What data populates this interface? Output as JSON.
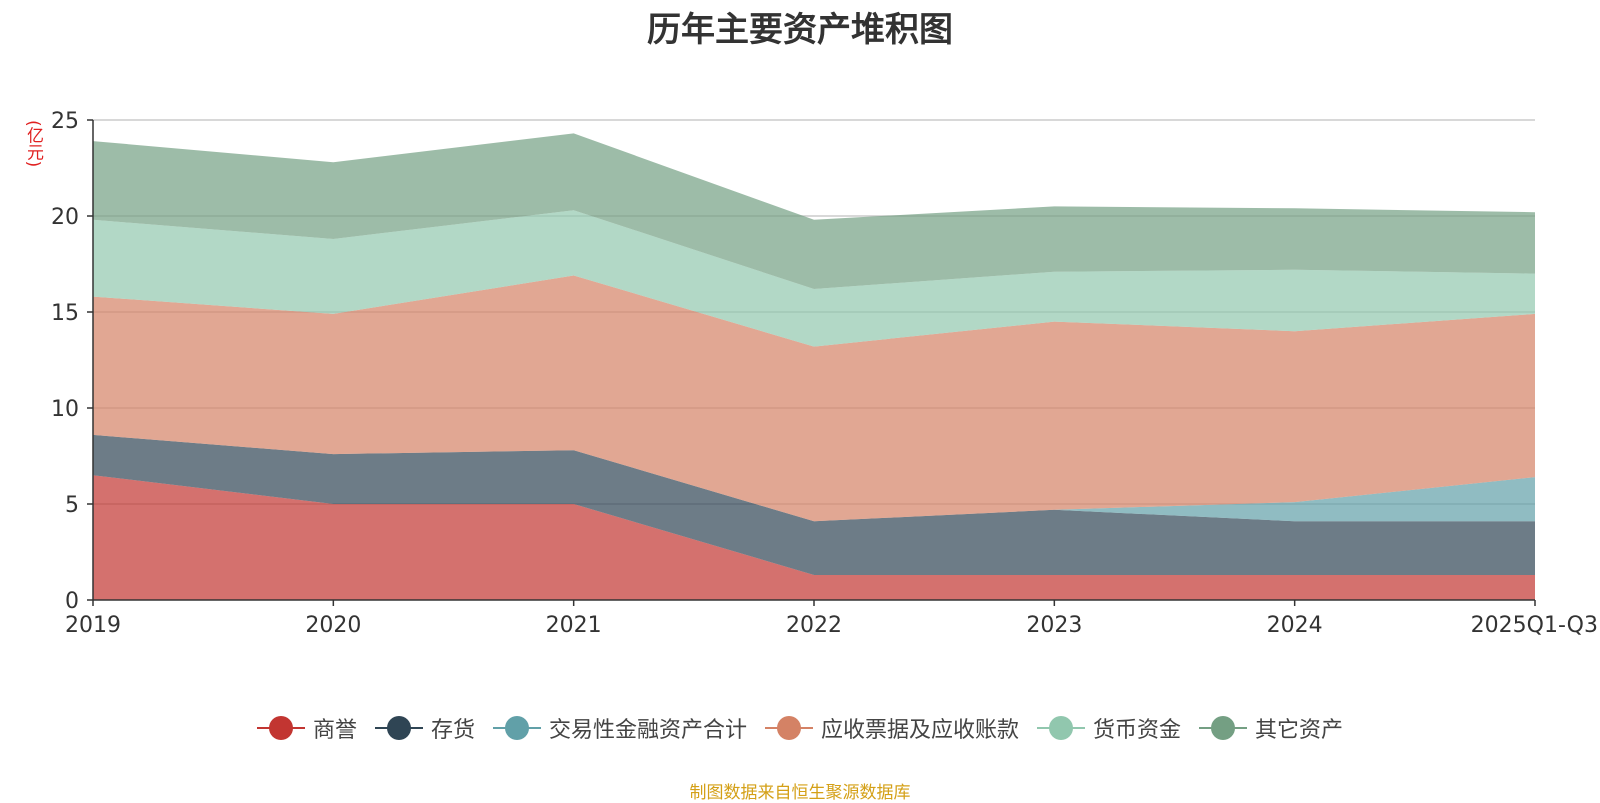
{
  "colors": [
    "#c23531",
    "#2f4554",
    "#61a0a8",
    "#d48265",
    "#91c7ae",
    "#749f83"
  ],
  "title": "历年主要资产堆积图",
  "unit": "(亿元)",
  "source": "制图数据来自恒生聚源数据库",
  "legend": [
    {
      "label": "商誉"
    },
    {
      "label": "存货"
    },
    {
      "label": "交易性金融资产合计"
    },
    {
      "label": "应收票据及应收账款"
    },
    {
      "label": "货币资金"
    },
    {
      "label": "其它资产"
    }
  ],
  "chart_data": {
    "type": "area",
    "stacked": true,
    "title": "历年主要资产堆积图",
    "ylabel": "(亿元)",
    "categories": [
      "2019",
      "2020",
      "2021",
      "2022",
      "2023",
      "2024",
      "2025Q1-Q3"
    ],
    "ylim": [
      0,
      25
    ],
    "yticks": [
      0,
      5,
      10,
      15,
      20,
      25
    ],
    "series": [
      {
        "name": "商誉",
        "values": [
          6.5,
          5.0,
          5.0,
          1.3,
          1.3,
          1.3,
          1.3
        ]
      },
      {
        "name": "存货",
        "values": [
          2.1,
          2.6,
          2.8,
          2.8,
          3.4,
          2.8,
          2.8
        ]
      },
      {
        "name": "交易性金融资产合计",
        "values": [
          0.0,
          0.0,
          0.0,
          0.0,
          0.0,
          1.0,
          2.3
        ]
      },
      {
        "name": "应收票据及应收账款",
        "values": [
          7.2,
          7.3,
          9.1,
          9.1,
          9.8,
          8.9,
          8.5
        ]
      },
      {
        "name": "货币资金",
        "values": [
          4.0,
          3.9,
          3.4,
          3.0,
          2.6,
          3.2,
          2.1
        ]
      },
      {
        "name": "其它资产",
        "values": [
          4.1,
          4.0,
          4.0,
          3.6,
          3.4,
          3.2,
          3.2
        ]
      }
    ]
  }
}
